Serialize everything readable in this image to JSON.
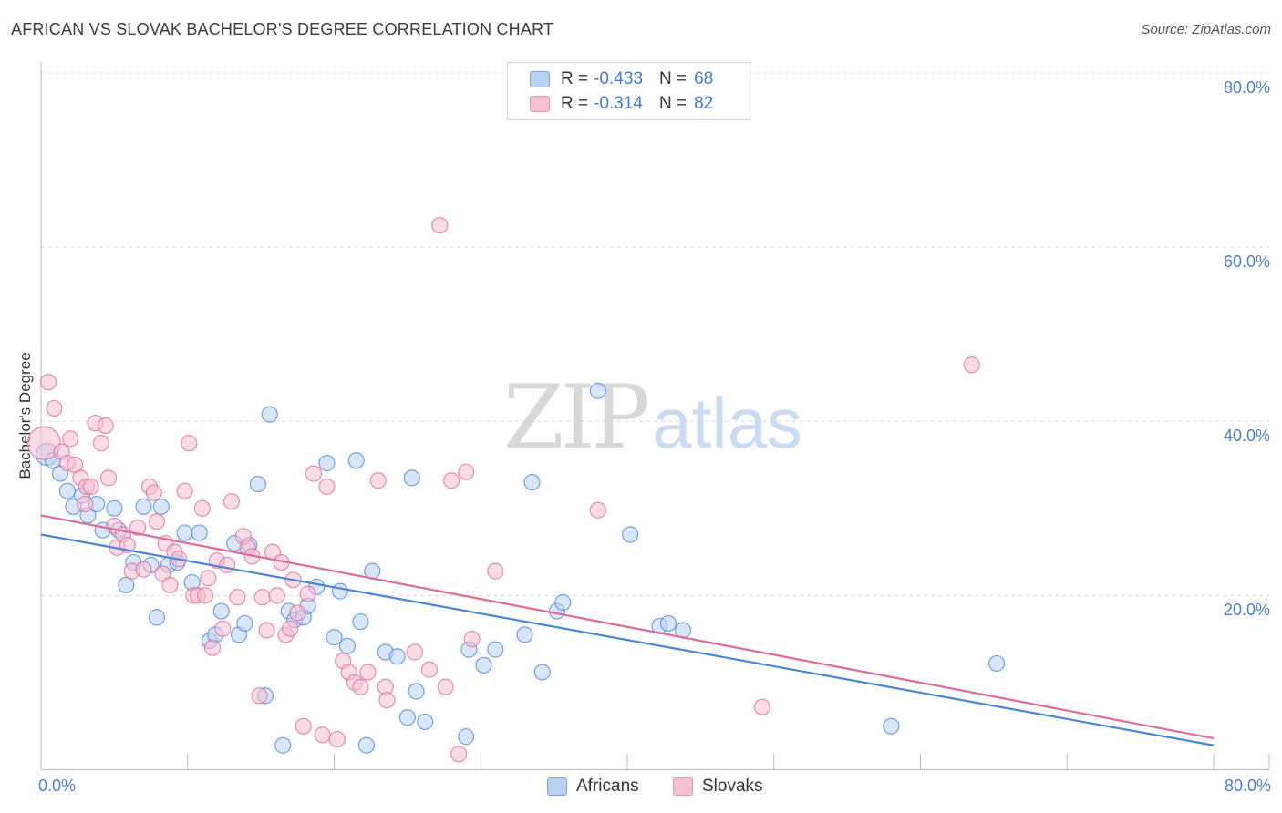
{
  "title": "AFRICAN VS SLOVAK BACHELOR'S DEGREE CORRELATION CHART",
  "source": "Source: ZipAtlas.com",
  "watermark": {
    "zip": "ZIP",
    "atlas": "atlas"
  },
  "legend": {
    "rows": [
      {
        "r_label": "R =",
        "r_value": "-0.433",
        "n_label": "N =",
        "n_value": "68"
      },
      {
        "r_label": "R =",
        "r_value": "-0.314",
        "n_label": "N =",
        "n_value": "82"
      }
    ]
  },
  "bottom_legend": [
    {
      "label": "Africans"
    },
    {
      "label": "Slovaks"
    }
  ],
  "chart_data": {
    "type": "scatter",
    "title": "AFRICAN VS SLOVAK BACHELOR'S DEGREE CORRELATION CHART",
    "xlabel": "",
    "ylabel": "Bachelor's Degree",
    "xlim": [
      0,
      80
    ],
    "ylim": [
      0,
      80
    ],
    "x_tick_labels": [
      {
        "value": 0,
        "label": "0.0%"
      },
      {
        "value": 80,
        "label": "80.0%"
      }
    ],
    "y_tick_labels": [
      {
        "value": 20,
        "label": "20.0%"
      },
      {
        "value": 40,
        "label": "40.0%"
      },
      {
        "value": 60,
        "label": "60.0%"
      },
      {
        "value": 80,
        "label": "80.0%"
      }
    ],
    "y_gridlines": [
      20,
      40,
      60,
      80
    ],
    "series": [
      {
        "name": "Africans",
        "color": "#4a86d8",
        "fill": "#b8d1f2",
        "r": -0.433,
        "n": 68,
        "trend": {
          "x0": 0,
          "y0": 27.0,
          "x1": 80,
          "y1": 2.8
        },
        "points": [
          [
            0.4,
            36.2
          ],
          [
            0.8,
            35.5
          ],
          [
            1.3,
            34.0
          ],
          [
            1.8,
            32.0
          ],
          [
            2.2,
            30.2
          ],
          [
            2.8,
            31.5
          ],
          [
            3.2,
            29.2
          ],
          [
            3.8,
            30.5
          ],
          [
            4.2,
            27.5
          ],
          [
            5.0,
            30.0
          ],
          [
            5.3,
            27.5
          ],
          [
            5.8,
            21.2
          ],
          [
            6.3,
            23.8
          ],
          [
            7.0,
            30.2
          ],
          [
            7.5,
            23.5
          ],
          [
            7.9,
            17.5
          ],
          [
            8.2,
            30.2
          ],
          [
            8.7,
            23.5
          ],
          [
            9.3,
            23.8
          ],
          [
            9.8,
            27.2
          ],
          [
            10.3,
            21.5
          ],
          [
            10.8,
            27.2
          ],
          [
            11.5,
            14.8
          ],
          [
            11.9,
            15.5
          ],
          [
            12.3,
            18.2
          ],
          [
            13.2,
            26.0
          ],
          [
            13.5,
            15.5
          ],
          [
            13.9,
            16.8
          ],
          [
            14.2,
            25.8
          ],
          [
            14.8,
            32.8
          ],
          [
            15.3,
            8.5
          ],
          [
            15.6,
            40.8
          ],
          [
            16.5,
            2.8
          ],
          [
            16.9,
            18.2
          ],
          [
            17.3,
            17.2
          ],
          [
            17.9,
            17.5
          ],
          [
            18.2,
            18.8
          ],
          [
            18.8,
            21.0
          ],
          [
            19.5,
            35.2
          ],
          [
            20.0,
            15.2
          ],
          [
            20.4,
            20.5
          ],
          [
            20.9,
            14.2
          ],
          [
            21.5,
            35.5
          ],
          [
            21.8,
            17.0
          ],
          [
            22.2,
            2.8
          ],
          [
            22.6,
            22.8
          ],
          [
            23.5,
            13.5
          ],
          [
            24.3,
            13.0
          ],
          [
            25.0,
            6.0
          ],
          [
            25.3,
            33.5
          ],
          [
            25.6,
            9.0
          ],
          [
            26.2,
            5.5
          ],
          [
            29.0,
            3.8
          ],
          [
            29.2,
            13.8
          ],
          [
            30.2,
            12.0
          ],
          [
            31.0,
            13.8
          ],
          [
            33.0,
            15.5
          ],
          [
            33.5,
            33.0
          ],
          [
            34.2,
            11.2
          ],
          [
            35.2,
            18.2
          ],
          [
            35.6,
            19.2
          ],
          [
            38.0,
            43.5
          ],
          [
            40.2,
            27.0
          ],
          [
            42.2,
            16.5
          ],
          [
            42.8,
            16.8
          ],
          [
            43.8,
            16.0
          ],
          [
            58.0,
            5.0
          ],
          [
            65.2,
            12.2
          ]
        ]
      },
      {
        "name": "Slovaks",
        "color": "#e06a98",
        "fill": "#f6c0d3",
        "r": -0.314,
        "n": 82,
        "trend": {
          "x0": 0,
          "y0": 29.2,
          "x1": 80,
          "y1": 3.6
        },
        "points": [
          [
            0.2,
            37.5
          ],
          [
            0.5,
            44.5
          ],
          [
            0.9,
            41.5
          ],
          [
            1.4,
            36.5
          ],
          [
            1.8,
            35.2
          ],
          [
            2.0,
            38.0
          ],
          [
            2.3,
            35.0
          ],
          [
            2.7,
            33.5
          ],
          [
            3.1,
            32.5
          ],
          [
            3.4,
            32.5
          ],
          [
            3.7,
            39.8
          ],
          [
            4.1,
            37.5
          ],
          [
            4.4,
            39.5
          ],
          [
            4.6,
            33.5
          ],
          [
            5.0,
            28.0
          ],
          [
            5.2,
            25.5
          ],
          [
            5.6,
            27.0
          ],
          [
            5.9,
            25.8
          ],
          [
            6.2,
            22.8
          ],
          [
            6.6,
            27.8
          ],
          [
            7.0,
            23.0
          ],
          [
            7.4,
            32.5
          ],
          [
            7.7,
            31.8
          ],
          [
            7.9,
            28.5
          ],
          [
            8.3,
            22.5
          ],
          [
            8.5,
            26.0
          ],
          [
            8.8,
            21.2
          ],
          [
            9.1,
            25.0
          ],
          [
            9.4,
            24.2
          ],
          [
            9.8,
            32.0
          ],
          [
            10.1,
            37.5
          ],
          [
            10.4,
            20.0
          ],
          [
            10.7,
            20.0
          ],
          [
            11.0,
            30.0
          ],
          [
            11.4,
            22.0
          ],
          [
            11.7,
            14.0
          ],
          [
            12.0,
            24.0
          ],
          [
            12.4,
            16.2
          ],
          [
            12.7,
            23.5
          ],
          [
            13.0,
            30.8
          ],
          [
            13.4,
            19.8
          ],
          [
            13.8,
            26.8
          ],
          [
            14.1,
            25.5
          ],
          [
            14.4,
            24.5
          ],
          [
            14.9,
            8.5
          ],
          [
            15.1,
            19.8
          ],
          [
            15.4,
            16.0
          ],
          [
            15.8,
            25.0
          ],
          [
            16.1,
            20.0
          ],
          [
            16.4,
            23.8
          ],
          [
            16.7,
            15.5
          ],
          [
            17.0,
            16.2
          ],
          [
            17.2,
            21.8
          ],
          [
            17.5,
            18.0
          ],
          [
            17.9,
            5.0
          ],
          [
            18.2,
            20.2
          ],
          [
            18.6,
            34.0
          ],
          [
            19.2,
            4.0
          ],
          [
            19.5,
            32.5
          ],
          [
            20.2,
            3.5
          ],
          [
            20.6,
            12.5
          ],
          [
            21.0,
            11.2
          ],
          [
            21.4,
            10.0
          ],
          [
            21.8,
            9.5
          ],
          [
            22.3,
            11.2
          ],
          [
            23.0,
            33.2
          ],
          [
            23.5,
            9.5
          ],
          [
            23.6,
            8.0
          ],
          [
            25.5,
            13.5
          ],
          [
            26.5,
            11.5
          ],
          [
            27.2,
            62.5
          ],
          [
            27.6,
            9.5
          ],
          [
            28.0,
            33.2
          ],
          [
            28.5,
            1.8
          ],
          [
            29.0,
            34.2
          ],
          [
            29.4,
            15.0
          ],
          [
            31.0,
            22.8
          ],
          [
            38.0,
            29.8
          ],
          [
            49.2,
            7.2
          ],
          [
            63.5,
            46.5
          ],
          [
            11.2,
            20.0
          ],
          [
            3.0,
            30.5
          ]
        ]
      }
    ]
  }
}
